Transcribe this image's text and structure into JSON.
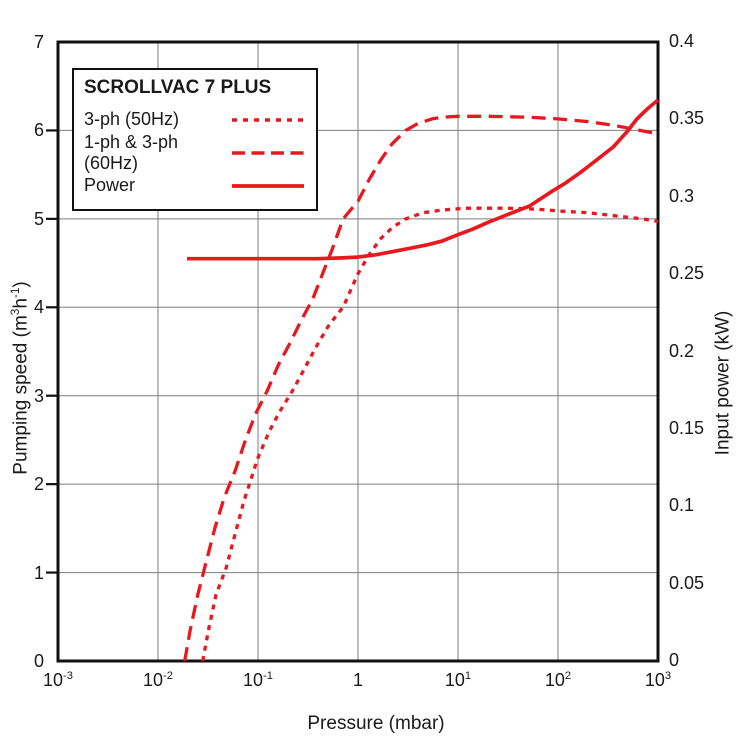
{
  "figure": {
    "background": "#ffffff",
    "accent_red": "#e8191e",
    "grid_color": "#7d7d7d",
    "axis_color": "#111111"
  },
  "legend": {
    "title": "SCROLLVAC 7 PLUS",
    "items": [
      {
        "label": "3-ph (50Hz)",
        "style": "dotted"
      },
      {
        "label": "1-ph & 3-ph (60Hz)",
        "style": "dashed"
      },
      {
        "label": "Power",
        "style": "solid"
      }
    ]
  },
  "chart_data": {
    "type": "line",
    "title": "SCROLLVAC 7 PLUS",
    "x_axis": {
      "label": "Pressure (mbar)",
      "scale": "log10",
      "range": [
        0.001,
        1000
      ],
      "tick_values": [
        0.001,
        0.01,
        0.1,
        1,
        10,
        100,
        1000
      ],
      "tick_labels": [
        "10^-3",
        "10^-2",
        "10^-1",
        "1",
        "10^1",
        "10^2",
        "10^3"
      ],
      "gridlines": true
    },
    "y_left_axis": {
      "label_plain": "Pumping speed (m^3 h^-1)",
      "label_parts": {
        "pre": "Pumping speed (m",
        "sup1": "3",
        "mid": "h",
        "sup2": "-1",
        "post": ")"
      },
      "range": [
        0,
        7
      ],
      "tick_values": [
        0,
        1,
        2,
        3,
        4,
        5,
        6,
        7
      ],
      "tick_labels": [
        "0",
        "1",
        "2",
        "3",
        "4",
        "5",
        "6",
        "7"
      ],
      "gridlines": true
    },
    "y_right_axis": {
      "label": "Input power (kW)",
      "range": [
        0,
        0.4
      ],
      "tick_values": [
        0,
        0.05,
        0.1,
        0.15,
        0.2,
        0.25,
        0.3,
        0.35,
        0.4
      ],
      "tick_labels": [
        "0",
        "0.05",
        "0.1",
        "0.15",
        "0.2",
        "0.25",
        "0.3",
        "0.35",
        "0.4"
      ],
      "gridlines": false
    },
    "series": [
      {
        "name": "3-ph (50Hz)",
        "axis": "left",
        "style": "dotted",
        "color": "#e8191e",
        "points": [
          [
            0.028,
            0
          ],
          [
            0.032,
            0.35
          ],
          [
            0.038,
            0.75
          ],
          [
            0.048,
            1.05
          ],
          [
            0.058,
            1.4
          ],
          [
            0.072,
            1.8
          ],
          [
            0.082,
            2.0
          ],
          [
            0.1,
            2.3
          ],
          [
            0.13,
            2.6
          ],
          [
            0.165,
            2.82
          ],
          [
            0.22,
            3.05
          ],
          [
            0.29,
            3.3
          ],
          [
            0.38,
            3.55
          ],
          [
            0.5,
            3.78
          ],
          [
            0.63,
            3.93
          ],
          [
            0.71,
            4.0
          ],
          [
            0.85,
            4.2
          ],
          [
            1.0,
            4.38
          ],
          [
            1.3,
            4.6
          ],
          [
            1.7,
            4.78
          ],
          [
            2.2,
            4.9
          ],
          [
            3.0,
            5.0
          ],
          [
            4.5,
            5.07
          ],
          [
            7,
            5.1
          ],
          [
            12,
            5.12
          ],
          [
            30,
            5.12
          ],
          [
            60,
            5.11
          ],
          [
            100,
            5.09
          ],
          [
            200,
            5.07
          ],
          [
            400,
            5.03
          ],
          [
            700,
            5.0
          ],
          [
            1000,
            4.97
          ]
        ]
      },
      {
        "name": "1-ph & 3-ph (60Hz)",
        "axis": "left",
        "style": "dashed",
        "color": "#e8191e",
        "points": [
          [
            0.0185,
            0
          ],
          [
            0.021,
            0.35
          ],
          [
            0.025,
            0.75
          ],
          [
            0.03,
            1.1
          ],
          [
            0.037,
            1.5
          ],
          [
            0.046,
            1.85
          ],
          [
            0.059,
            2.15
          ],
          [
            0.075,
            2.5
          ],
          [
            0.095,
            2.8
          ],
          [
            0.123,
            3.05
          ],
          [
            0.16,
            3.35
          ],
          [
            0.21,
            3.6
          ],
          [
            0.27,
            3.85
          ],
          [
            0.355,
            4.1
          ],
          [
            0.45,
            4.4
          ],
          [
            0.55,
            4.65
          ],
          [
            0.71,
            5.0
          ],
          [
            1.0,
            5.2
          ],
          [
            1.3,
            5.45
          ],
          [
            1.7,
            5.67
          ],
          [
            2.2,
            5.85
          ],
          [
            3.0,
            6.0
          ],
          [
            4.0,
            6.08
          ],
          [
            5.5,
            6.13
          ],
          [
            7,
            6.15
          ],
          [
            10,
            6.16
          ],
          [
            20,
            6.16
          ],
          [
            50,
            6.15
          ],
          [
            100,
            6.13
          ],
          [
            200,
            6.1
          ],
          [
            350,
            6.06
          ],
          [
            600,
            6.01
          ],
          [
            1000,
            5.96
          ]
        ]
      },
      {
        "name": "Power",
        "axis": "right",
        "style": "solid",
        "color": "#e8191e",
        "points": [
          [
            0.0195,
            0.26
          ],
          [
            0.05,
            0.26
          ],
          [
            0.15,
            0.26
          ],
          [
            0.4,
            0.26
          ],
          [
            0.7,
            0.2605
          ],
          [
            1.0,
            0.261
          ],
          [
            1.5,
            0.2625
          ],
          [
            2.2,
            0.2645
          ],
          [
            3.2,
            0.2665
          ],
          [
            5,
            0.269
          ],
          [
            7,
            0.2715
          ],
          [
            10,
            0.2755
          ],
          [
            14,
            0.279
          ],
          [
            20,
            0.2835
          ],
          [
            30,
            0.288
          ],
          [
            52,
            0.294
          ],
          [
            87,
            0.3035
          ],
          [
            120,
            0.309
          ],
          [
            166,
            0.3155
          ],
          [
            240,
            0.3235
          ],
          [
            355,
            0.332
          ],
          [
            490,
            0.342
          ],
          [
            620,
            0.3505
          ],
          [
            790,
            0.357
          ],
          [
            1000,
            0.3625
          ]
        ]
      }
    ]
  }
}
